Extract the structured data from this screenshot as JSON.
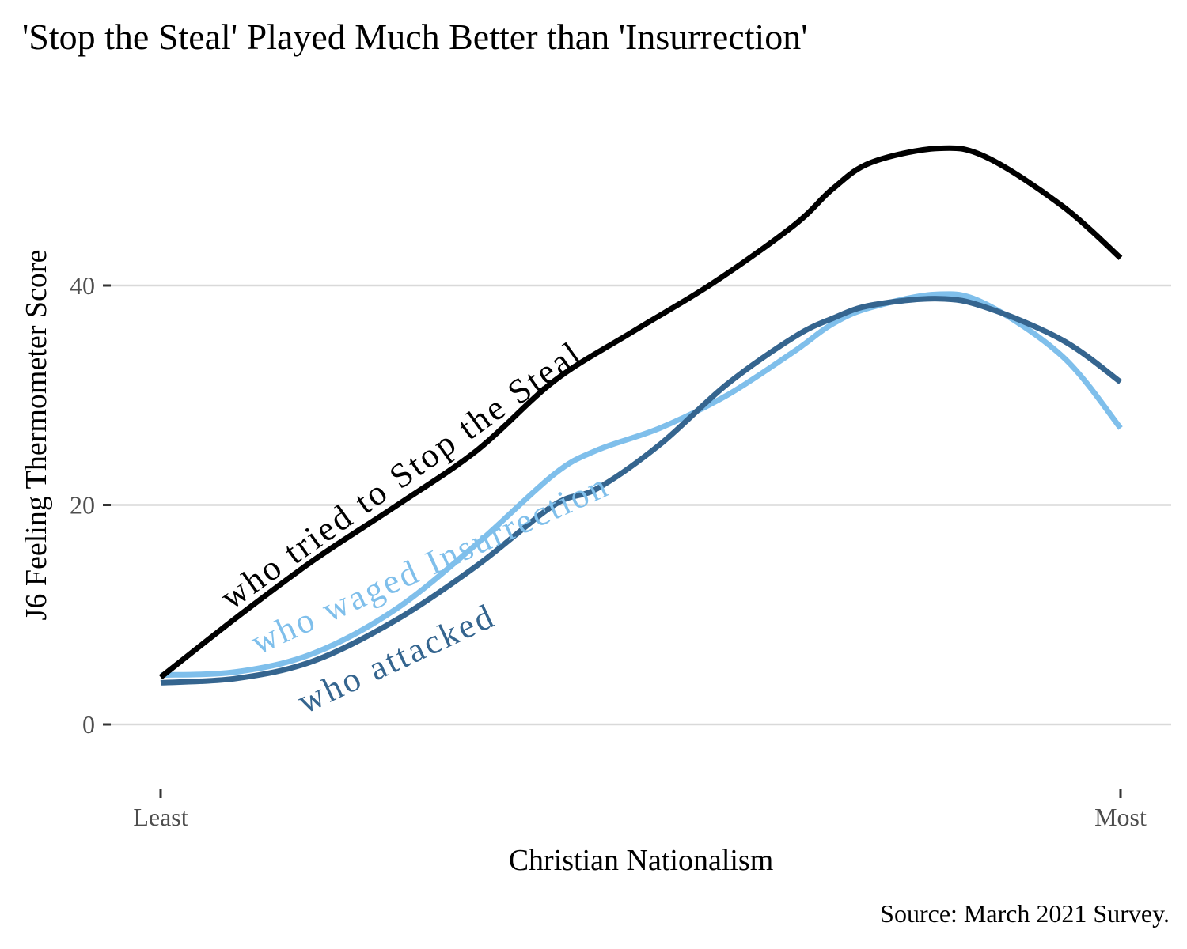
{
  "chart_data": {
    "type": "line",
    "title": "'Stop the Steal' Played Much Better than 'Insurrection'",
    "xlabel": "Christian Nationalism",
    "ylabel": "J6 Feeling Thermometer Score",
    "caption": "Source: March 2021 Survey.",
    "xlim": [
      0,
      1
    ],
    "ylim": [
      -5,
      52
    ],
    "x_ticks": [
      {
        "value": 0,
        "label": "Least"
      },
      {
        "value": 1,
        "label": "Most"
      }
    ],
    "y_ticks": [
      {
        "value": 0,
        "label": "0"
      },
      {
        "value": 20,
        "label": "20"
      },
      {
        "value": 40,
        "label": "40"
      }
    ],
    "grid": "horizontal",
    "legend": "none (direct labels on lines)",
    "series": [
      {
        "name": "who tried to Stop the Steal",
        "color": "#000000",
        "x": [
          0,
          0.08,
          0.16,
          0.245,
          0.33,
          0.41,
          0.49,
          0.575,
          0.66,
          0.7,
          0.74,
          0.81,
          0.86,
          0.94,
          1.0
        ],
        "y": [
          4.3,
          9.8,
          15.0,
          19.9,
          25.0,
          31.3,
          35.7,
          40.2,
          45.5,
          48.8,
          51.2,
          52.5,
          51.7,
          47.2,
          42.5
        ]
      },
      {
        "name": "who waged Insurrection",
        "color": "#7fbfeb",
        "x": [
          0,
          0.08,
          0.16,
          0.245,
          0.33,
          0.41,
          0.455,
          0.52,
          0.59,
          0.66,
          0.7,
          0.74,
          0.81,
          0.86,
          0.94,
          1.0
        ],
        "y": [
          4.5,
          4.8,
          6.5,
          10.5,
          16.5,
          22.8,
          25.0,
          27.0,
          30.0,
          34.0,
          36.5,
          38.0,
          39.2,
          38.3,
          33.5,
          27.0
        ]
      },
      {
        "name": "who attacked",
        "color": "#35658f",
        "x": [
          0,
          0.08,
          0.16,
          0.245,
          0.33,
          0.41,
          0.455,
          0.52,
          0.59,
          0.66,
          0.7,
          0.74,
          0.81,
          0.86,
          0.94,
          1.0
        ],
        "y": [
          3.8,
          4.2,
          5.8,
          9.5,
          14.5,
          20.0,
          21.5,
          25.5,
          31.0,
          35.3,
          37.0,
          38.2,
          38.8,
          38.0,
          35.0,
          31.2
        ]
      }
    ],
    "annotations": [
      {
        "text": "who tried to Stop the Steal",
        "series": "who tried to Stop the Steal"
      },
      {
        "text": "who waged Insurrection",
        "series": "who waged Insurrection"
      },
      {
        "text": "who attacked",
        "series": "who attacked"
      }
    ]
  }
}
